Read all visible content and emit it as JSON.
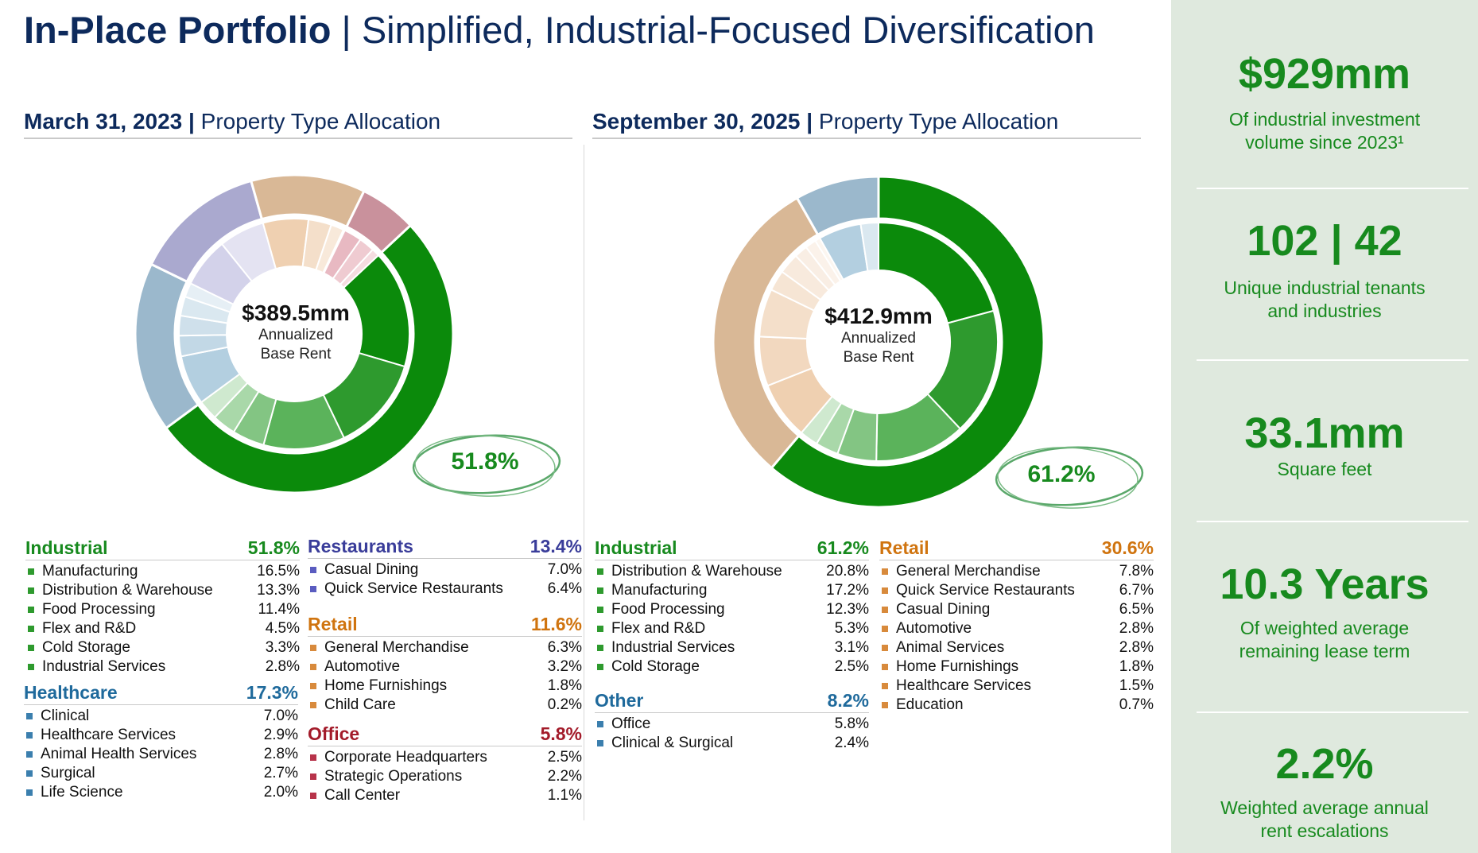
{
  "header": {
    "title_bold": "In-Place Portfolio",
    "title_sep": " | ",
    "title_rest": "Simplified, Industrial-Focused Diversification"
  },
  "sidebar": {
    "stats": [
      {
        "big": "$929mm",
        "desc1": "Of industrial investment",
        "desc2": "volume since 2023¹"
      },
      {
        "big": "102 | 42",
        "desc1": "Unique industrial tenants",
        "desc2": "and industries"
      },
      {
        "big": "33.1mm",
        "desc1": "Square feet",
        "desc2": ""
      },
      {
        "big": "10.3 Years",
        "desc1": "Of weighted average",
        "desc2": "remaining lease term"
      },
      {
        "big": "2.2%",
        "desc1": "Weighted average annual",
        "desc2": "rent escalations"
      }
    ]
  },
  "chart_data": [
    {
      "type": "pie",
      "date": "March 31, 2023",
      "title_sep": " | ",
      "subtitle": "Property Type Allocation",
      "center": {
        "amount": "$389.5mm",
        "line1": "Annualized",
        "line2": "Base Rent"
      },
      "callout": "51.8%",
      "categories": [
        {
          "name": "Industrial",
          "total": "51.8%",
          "value": 51.8,
          "color": "#0b8a0b",
          "items": [
            {
              "name": "Manufacturing",
              "pct": "16.5%",
              "value": 16.5,
              "color": "#0b8a0b"
            },
            {
              "name": "Distribution & Warehouse",
              "pct": "13.3%",
              "value": 13.3,
              "color": "#2e9a2e"
            },
            {
              "name": "Food Processing",
              "pct": "11.4%",
              "value": 11.4,
              "color": "#5bb35b"
            },
            {
              "name": "Flex and R&D",
              "pct": "4.5%",
              "value": 4.5,
              "color": "#83c583"
            },
            {
              "name": "Cold Storage",
              "pct": "3.3%",
              "value": 3.3,
              "color": "#a9d8a9"
            },
            {
              "name": "Industrial Services",
              "pct": "2.8%",
              "value": 2.8,
              "color": "#cfe9cf"
            }
          ]
        },
        {
          "name": "Healthcare",
          "total": "17.3%",
          "value": 17.3,
          "color": "#9bb8cc",
          "items": [
            {
              "name": "Clinical",
              "pct": "7.0%",
              "value": 7.0,
              "color": "#b3cfe0"
            },
            {
              "name": "Healthcare Services",
              "pct": "2.9%",
              "value": 2.9,
              "color": "#c2d8e6"
            },
            {
              "name": "Animal Health Services",
              "pct": "2.8%",
              "value": 2.8,
              "color": "#cfe0eb"
            },
            {
              "name": "Surgical",
              "pct": "2.7%",
              "value": 2.7,
              "color": "#dae8f0"
            },
            {
              "name": "Life Science",
              "pct": "2.0%",
              "value": 2.0,
              "color": "#e6eff5"
            }
          ]
        },
        {
          "name": "Restaurants",
          "total": "13.4%",
          "value": 13.4,
          "color": "#aaa9cf",
          "items": [
            {
              "name": "Casual Dining",
              "pct": "7.0%",
              "value": 7.0,
              "color": "#d3d2ea"
            },
            {
              "name": "Quick Service Restaurants",
              "pct": "6.4%",
              "value": 6.4,
              "color": "#e4e3f2"
            }
          ]
        },
        {
          "name": "Retail",
          "total": "11.6%",
          "value": 11.6,
          "color": "#d9b896",
          "items": [
            {
              "name": "General Merchandise",
              "pct": "6.3%",
              "value": 6.3,
              "color": "#efd0b1"
            },
            {
              "name": "Automotive",
              "pct": "3.2%",
              "value": 3.2,
              "color": "#f4dfca"
            },
            {
              "name": "Home Furnishings",
              "pct": "1.8%",
              "value": 1.8,
              "color": "#f8e9da"
            },
            {
              "name": "Child Care",
              "pct": "0.2%",
              "value": 0.2,
              "color": "#faefe4"
            }
          ]
        },
        {
          "name": "Office",
          "total": "5.8%",
          "value": 5.8,
          "color": "#c9919c",
          "items": [
            {
              "name": "Corporate Headquarters",
              "pct": "2.5%",
              "value": 2.5,
              "color": "#e8b9c2"
            },
            {
              "name": "Strategic Operations",
              "pct": "2.2%",
              "value": 2.2,
              "color": "#efcbd1"
            },
            {
              "name": "Call Center",
              "pct": "1.1%",
              "value": 1.1,
              "color": "#f5dce0"
            }
          ]
        }
      ]
    },
    {
      "type": "pie",
      "date": "September 30, 2025",
      "title_sep": " | ",
      "subtitle": "Property Type Allocation",
      "center": {
        "amount": "$412.9mm",
        "line1": "Annualized",
        "line2": "Base Rent"
      },
      "callout": "61.2%",
      "categories": [
        {
          "name": "Industrial",
          "total": "61.2%",
          "value": 61.2,
          "color": "#0b8a0b",
          "items": [
            {
              "name": "Distribution & Warehouse",
              "pct": "20.8%",
              "value": 20.8,
              "color": "#0b8a0b"
            },
            {
              "name": "Manufacturing",
              "pct": "17.2%",
              "value": 17.2,
              "color": "#2e9a2e"
            },
            {
              "name": "Food Processing",
              "pct": "12.3%",
              "value": 12.3,
              "color": "#5bb35b"
            },
            {
              "name": "Flex and R&D",
              "pct": "5.3%",
              "value": 5.3,
              "color": "#83c583"
            },
            {
              "name": "Industrial Services",
              "pct": "3.1%",
              "value": 3.1,
              "color": "#a9d8a9"
            },
            {
              "name": "Cold Storage",
              "pct": "2.5%",
              "value": 2.5,
              "color": "#cfe9cf"
            }
          ]
        },
        {
          "name": "Retail",
          "total": "30.6%",
          "value": 30.6,
          "color": "#d9b896",
          "items": [
            {
              "name": "General Merchandise",
              "pct": "7.8%",
              "value": 7.8,
              "color": "#efd0b1"
            },
            {
              "name": "Quick Service Restaurants",
              "pct": "6.7%",
              "value": 6.7,
              "color": "#f2d8bf"
            },
            {
              "name": "Casual Dining",
              "pct": "6.5%",
              "value": 6.5,
              "color": "#f4dfca"
            },
            {
              "name": "Automotive",
              "pct": "2.8%",
              "value": 2.8,
              "color": "#f6e5d4"
            },
            {
              "name": "Animal Services",
              "pct": "2.8%",
              "value": 2.8,
              "color": "#f8eadd"
            },
            {
              "name": "Home Furnishings",
              "pct": "1.8%",
              "value": 1.8,
              "color": "#f9eee4"
            },
            {
              "name": "Healthcare Services",
              "pct": "1.5%",
              "value": 1.5,
              "color": "#fbf2ea"
            },
            {
              "name": "Education",
              "pct": "0.7%",
              "value": 0.7,
              "color": "#fcf6f0"
            }
          ]
        },
        {
          "name": "Other",
          "total": "8.2%",
          "value": 8.2,
          "color": "#9bb8cc",
          "items": [
            {
              "name": "Office",
              "pct": "5.8%",
              "value": 5.8,
              "color": "#b3cfe0"
            },
            {
              "name": "Clinical & Surgical",
              "pct": "2.4%",
              "value": 2.4,
              "color": "#dae8f0"
            }
          ]
        }
      ]
    }
  ],
  "legend_colors": {
    "Industrial": "#178a1e",
    "Healthcare": "#1f6a9c",
    "Restaurants": "#3a3d9a",
    "Retail": "#d0740f",
    "Office": "#a31b2a",
    "Other": "#1f6a9c",
    "sw_Industrial": "#2e9a2e",
    "sw_Healthcare": "#3b7fae",
    "sw_Restaurants": "#5a5cc0",
    "sw_Retail": "#d88a3c",
    "sw_Office": "#b7334a",
    "sw_Other": "#3b7fae"
  }
}
